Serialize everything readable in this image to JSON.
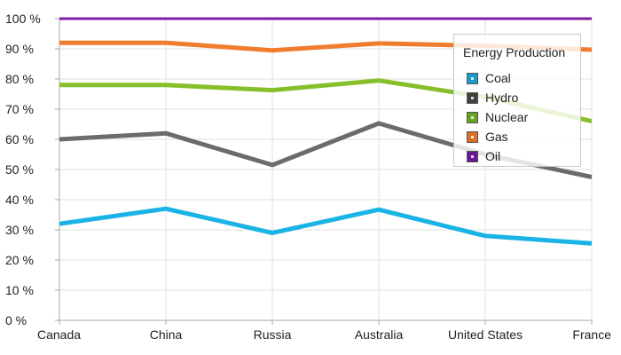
{
  "chart_data": {
    "type": "line",
    "categories": [
      "Canada",
      "China",
      "Russia",
      "Australia",
      "United States",
      "France"
    ],
    "y_ticks": [
      "0 %",
      "10 %",
      "20 %",
      "30 %",
      "40 %",
      "50 %",
      "60 %",
      "70 %",
      "80 %",
      "90 %",
      "100 %"
    ],
    "ylim": [
      0,
      100
    ],
    "grid": true,
    "stacked": "100%",
    "legend": {
      "title": "Energy Production",
      "placement": "top-right"
    },
    "series": [
      {
        "name": "Coal",
        "color": "#1ab3e6",
        "swatch": "#1a9ac8",
        "values": [
          32,
          37,
          29,
          36.7,
          28,
          25.5
        ]
      },
      {
        "name": "Hydro",
        "color": "#6b6b6b",
        "swatch": "#404040",
        "values": [
          60,
          62,
          51.5,
          65.3,
          55,
          47.5
        ]
      },
      {
        "name": "Nuclear",
        "color": "#86bf2a",
        "swatch": "#6aa31f",
        "values": [
          78,
          78,
          76.3,
          79.5,
          74,
          66
        ]
      },
      {
        "name": "Gas",
        "color": "#f07d2f",
        "swatch": "#e06d24",
        "values": [
          92,
          92,
          89.5,
          91.8,
          91,
          89.7
        ]
      },
      {
        "name": "Oil",
        "color": "#7b1fa2",
        "swatch": "#6a1592",
        "values": [
          100,
          100,
          100,
          100,
          100,
          100
        ]
      }
    ]
  }
}
